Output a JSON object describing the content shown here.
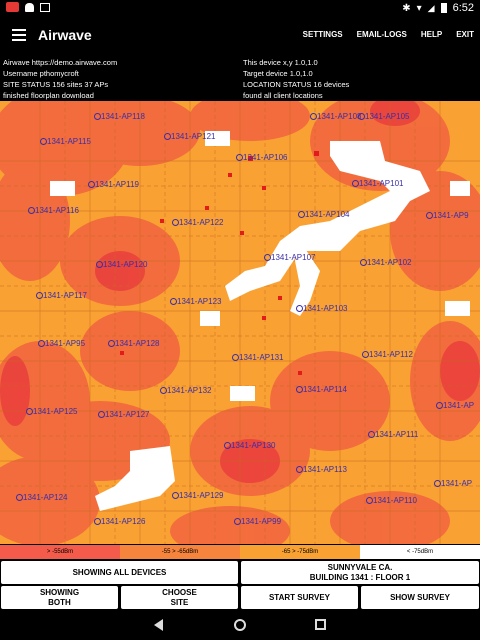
{
  "status_bar": {
    "time": "6:52",
    "icons": [
      "app-icon",
      "android-icon",
      "image-icon",
      "bluetooth-icon",
      "wifi-icon",
      "signal-icon",
      "battery-icon"
    ]
  },
  "app_bar": {
    "title": "Airwave",
    "actions": [
      "SETTINGS",
      "EMAIL-LOGS",
      "HELP",
      "EXIT"
    ]
  },
  "info": {
    "left": [
      "Airwave  https://demo.airwave.com",
      "Username pthomycroft",
      "SITE STATUS 156 sites 37 APs",
      "finished floorplan download"
    ],
    "right": [
      "This device x,y 1.0,1.0",
      "Target device  1.0,1.0",
      "LOCATION STATUS 16 devices",
      "found all client locations"
    ]
  },
  "access_points": [
    {
      "label": "1341-AP118"
    },
    {
      "label": "1341-AP115"
    },
    {
      "label": "1341-AP121"
    },
    {
      "label": "1341-AP106"
    },
    {
      "label": "1341-AP108"
    },
    {
      "label": "1341-AP105"
    },
    {
      "label": "1341-AP119"
    },
    {
      "label": "1341-AP101"
    },
    {
      "label": "1341-AP116"
    },
    {
      "label": "1341-AP122"
    },
    {
      "label": "1341-AP104"
    },
    {
      "label": "1341-AP9"
    },
    {
      "label": "1341-AP107"
    },
    {
      "label": "1341-AP120"
    },
    {
      "label": "1341-AP102"
    },
    {
      "label": "1341-AP117"
    },
    {
      "label": "1341-AP123"
    },
    {
      "label": "1341-AP103"
    },
    {
      "label": "1341-AP95"
    },
    {
      "label": "1341-AP128"
    },
    {
      "label": "1341-AP131"
    },
    {
      "label": "1341-AP112"
    },
    {
      "label": "1341-AP132"
    },
    {
      "label": "1341-AP114"
    },
    {
      "label": "1341-AP125"
    },
    {
      "label": "1341-AP127"
    },
    {
      "label": "1341-AP"
    },
    {
      "label": "1341-AP111"
    },
    {
      "label": "1341-AP130"
    },
    {
      "label": "1341-AP113"
    },
    {
      "label": "1341-AP"
    },
    {
      "label": "1341-AP124"
    },
    {
      "label": "1341-AP129"
    },
    {
      "label": "1341-AP110"
    },
    {
      "label": "1341-AP126"
    },
    {
      "label": "1341-AP99"
    }
  ],
  "legend": [
    {
      "label": "> -55dBm",
      "color": "#f45b4a"
    },
    {
      "label": "-55 > -65dBm",
      "color": "#f7843d"
    },
    {
      "label": "-65 > -75dBm",
      "color": "#f9a233"
    },
    {
      "label": "< -75dBm",
      "color": "#ffffff"
    }
  ],
  "buttons": {
    "showing_all_devices": "SHOWING ALL DEVICES",
    "site_line1": "SUNNYVALE CA.",
    "site_line2": "BUILDING 1341 : FLOOR 1",
    "showing_line1": "SHOWING",
    "showing_line2": "BOTH",
    "choose_line1": "CHOOSE",
    "choose_line2": "SITE",
    "start_survey": "START SURVEY",
    "show_survey": "SHOW SURVEY"
  }
}
